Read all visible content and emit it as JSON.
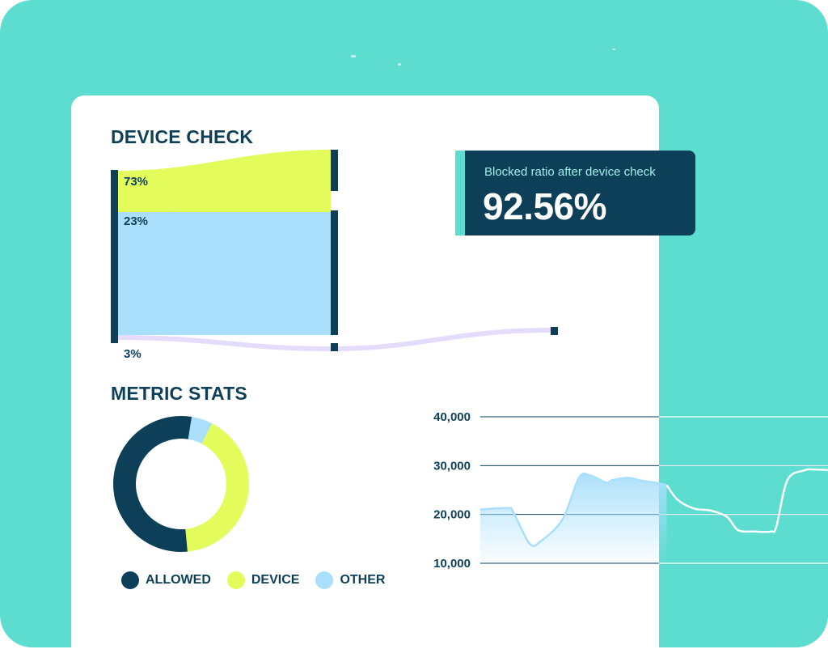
{
  "colors": {
    "teal": "#5ddcd0",
    "navy": "#0e3f58",
    "lime": "#e3fb5b",
    "light_blue": "#aadffb",
    "lavender": "#e5dcfb",
    "white": "#ffffff"
  },
  "device_check": {
    "title": "DEVICE CHECK",
    "flows": [
      {
        "label": "73%",
        "value": 73,
        "color": "#e3fb5b"
      },
      {
        "label": "23%",
        "value": 23,
        "color": "#aadffb"
      },
      {
        "label": "3%",
        "value": 3,
        "color": "#e5dcfb"
      }
    ]
  },
  "blocked_ratio": {
    "label": "Blocked ratio after device check",
    "value": "92.56%"
  },
  "metric_stats": {
    "title": "METRIC STATS",
    "legend": [
      {
        "label": "ALLOWED",
        "color": "#0e3f58"
      },
      {
        "label": "DEVICE",
        "color": "#e3fb5b"
      },
      {
        "label": "OTHER",
        "color": "#aadffb"
      }
    ]
  },
  "chart_data": [
    {
      "type": "pie",
      "categories": [
        "DEVICE",
        "ALLOWED",
        "OTHER"
      ],
      "values": [
        41,
        54,
        5
      ],
      "colors": [
        "#e3fb5b",
        "#0e3f58",
        "#aadffb"
      ],
      "donut": true,
      "legend_position": "bottom"
    },
    {
      "type": "line",
      "yticks": [
        "40,000",
        "30,000",
        "20,000",
        "10,000"
      ],
      "ytick_values": [
        40000,
        30000,
        20000,
        10000
      ],
      "ylim": [
        10000,
        40000
      ],
      "grid": true,
      "series": [
        {
          "style": "area",
          "color": "#aadffb",
          "x": [
            0,
            5,
            6,
            9,
            11,
            15,
            18,
            20,
            23,
            24,
            27,
            29,
            30,
            32,
            34
          ],
          "y": [
            21000,
            21300,
            20500,
            14000,
            14500,
            19000,
            27500,
            28000,
            26500,
            27000,
            27500,
            27000,
            26800,
            26500,
            26000
          ]
        },
        {
          "style": "line",
          "color": "#ffffff",
          "x": [
            34,
            36,
            39,
            42,
            45,
            47,
            50,
            53,
            54,
            56,
            59,
            61,
            64,
            66,
            68
          ],
          "y": [
            26000,
            23000,
            21200,
            20800,
            19500,
            16800,
            16500,
            16500,
            17500,
            27000,
            29000,
            29200,
            29000,
            28500,
            26700
          ]
        }
      ]
    }
  ]
}
